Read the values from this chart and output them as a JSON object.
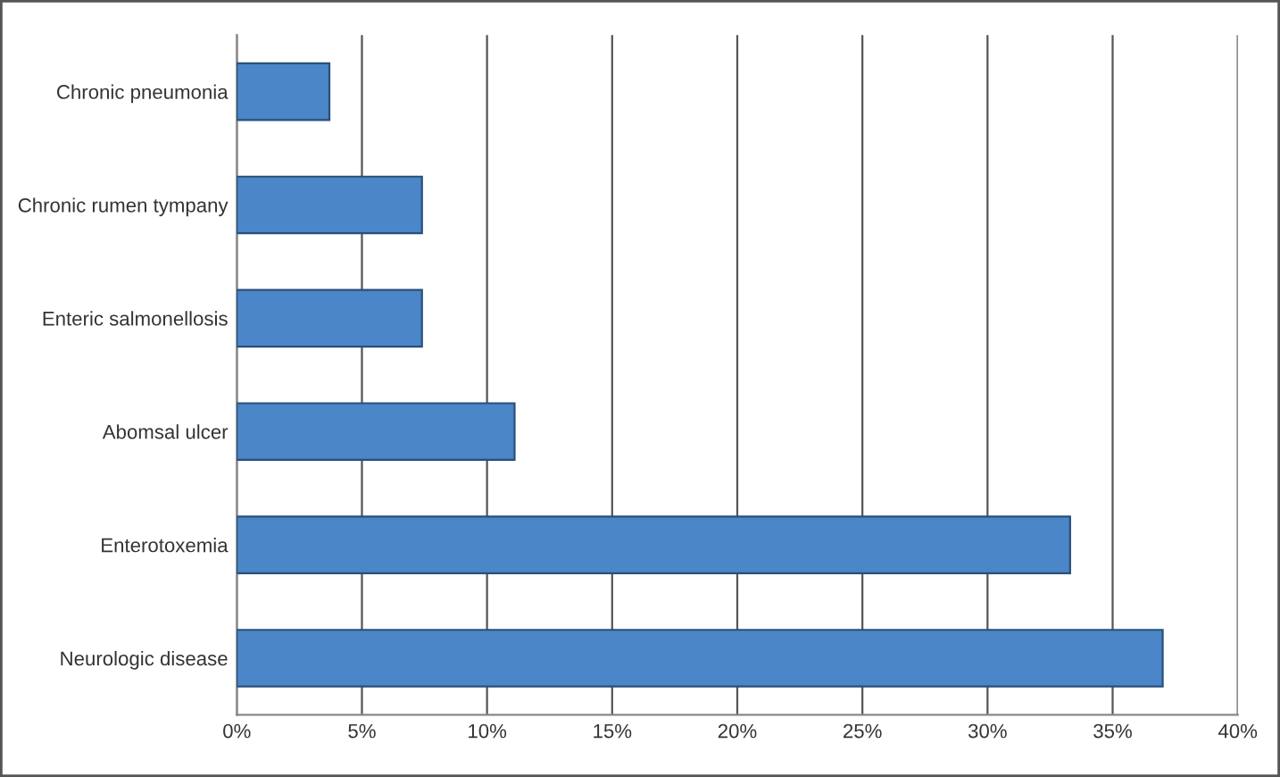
{
  "chart_data": {
    "type": "bar",
    "orientation": "horizontal",
    "categories": [
      "Chronic pneumonia",
      "Chronic rumen tympany",
      "Enteric salmonellosis",
      "Abomsal ulcer",
      "Enterotoxemia",
      "Neurologic disease"
    ],
    "values": [
      3.7,
      7.4,
      7.4,
      11.1,
      33.3,
      37.0
    ],
    "color": "#4a86c8",
    "xlim": [
      0,
      40
    ],
    "xticks": [
      {
        "value": 0,
        "label": "0%"
      },
      {
        "value": 5,
        "label": "5%"
      },
      {
        "value": 10,
        "label": "10%"
      },
      {
        "value": 15,
        "label": "15%"
      },
      {
        "value": 20,
        "label": "20%"
      },
      {
        "value": 25,
        "label": "25%"
      },
      {
        "value": 30,
        "label": "30%"
      },
      {
        "value": 35,
        "label": "35%"
      },
      {
        "value": 40,
        "label": "40%"
      }
    ],
    "grid": "x",
    "legend": false
  }
}
